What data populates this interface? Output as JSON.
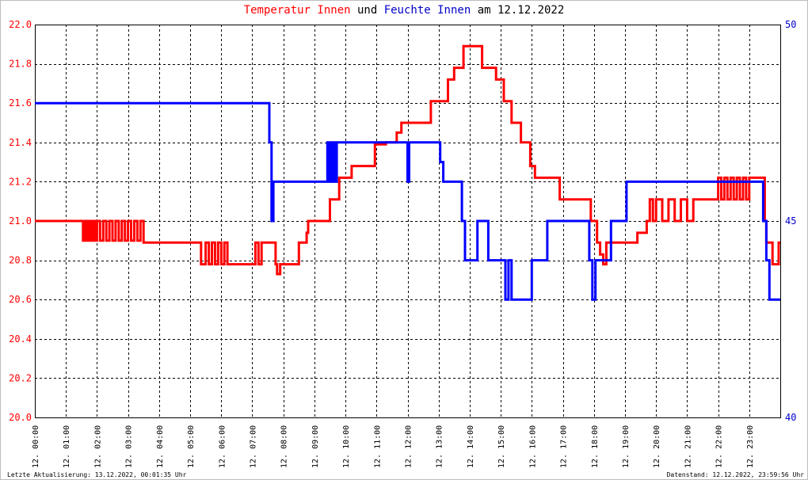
{
  "title": {
    "part1": "Temperatur Innen",
    "part2": " und ",
    "part3": "Feuchte Innen",
    "part4": " am 12.12.2022"
  },
  "footer": {
    "left": "Letzte Aktualisierung: 13.12.2022, 00:01:35 Uhr",
    "right": "Datenstand: 12.12.2022, 23:59:56 Uhr"
  },
  "colors": {
    "temperature": "#ff0000",
    "humidity": "#0000ff",
    "grid": "#000000",
    "title_temperature": "#ff0000",
    "title_humidity": "#0000c8"
  },
  "chart_data": {
    "type": "line",
    "grid": true,
    "x_range_hours": [
      0,
      24
    ],
    "x_ticks": [
      "12. 00:00",
      "12. 01:00",
      "12. 02:00",
      "12. 03:00",
      "12. 04:00",
      "12. 05:00",
      "12. 06:00",
      "12. 07:00",
      "12. 08:00",
      "12. 09:00",
      "12. 10:00",
      "12. 11:00",
      "12. 12:00",
      "12. 13:00",
      "12. 14:00",
      "12. 15:00",
      "12. 16:00",
      "12. 17:00",
      "12. 18:00",
      "12. 19:00",
      "12. 20:00",
      "12. 21:00",
      "12. 22:00",
      "12. 23:00"
    ],
    "y_left": {
      "min": 20.0,
      "max": 22.0,
      "ticks": [
        "20.0",
        "20.2",
        "20.4",
        "20.6",
        "20.8",
        "21.0",
        "21.2",
        "21.4",
        "21.6",
        "21.8",
        "22.0"
      ]
    },
    "y_right": {
      "min": 40,
      "max": 50,
      "ticks": [
        "40",
        "45",
        "50"
      ]
    },
    "series": [
      {
        "name": "Temperatur Innen",
        "axis": "left",
        "color": "#ff0000",
        "x": [
          0,
          1.55,
          1.6,
          1.65,
          1.7,
          1.75,
          1.8,
          1.85,
          1.9,
          1.95,
          2.0,
          2.1,
          2.2,
          2.3,
          2.4,
          2.5,
          2.6,
          2.7,
          2.8,
          2.9,
          3.0,
          3.1,
          3.2,
          3.3,
          3.4,
          3.5,
          5.3,
          5.35,
          5.5,
          5.6,
          5.7,
          5.8,
          5.9,
          6.0,
          6.1,
          6.2,
          6.3,
          7.1,
          7.2,
          7.3,
          7.4,
          7.75,
          7.8,
          7.9,
          7.95,
          8.5,
          8.6,
          8.75,
          8.8,
          9.1,
          9.5,
          9.8,
          10.2,
          10.8,
          10.95,
          11.3,
          11.65,
          11.8,
          12.6,
          12.75,
          12.9,
          13.3,
          13.5,
          13.8,
          14.05,
          14.4,
          14.55,
          14.85,
          15.1,
          15.35,
          15.65,
          15.95,
          16.1,
          16.9,
          17.05,
          17.9,
          17.95,
          18.1,
          18.2,
          18.3,
          18.4,
          19.0,
          19.4,
          19.7,
          19.8,
          19.9,
          20.0,
          20.2,
          20.4,
          20.6,
          20.8,
          21.0,
          21.2,
          21.95,
          22.0,
          22.1,
          22.2,
          22.3,
          22.4,
          22.5,
          22.6,
          22.7,
          22.8,
          22.9,
          23.0,
          23.1,
          23.35,
          23.5,
          23.55,
          23.75,
          23.95,
          24.0
        ],
        "y": [
          21.0,
          20.9,
          21.0,
          20.9,
          21.0,
          20.9,
          21.0,
          20.9,
          21.0,
          20.9,
          21.0,
          20.9,
          21.0,
          20.9,
          21.0,
          20.9,
          21.0,
          20.9,
          21.0,
          20.9,
          21.0,
          20.9,
          21.0,
          20.9,
          21.0,
          20.89,
          20.89,
          20.78,
          20.89,
          20.78,
          20.89,
          20.78,
          20.89,
          20.78,
          20.89,
          20.78,
          20.78,
          20.89,
          20.78,
          20.89,
          20.89,
          20.78,
          20.73,
          20.78,
          20.78,
          20.89,
          20.89,
          20.94,
          21.0,
          21.0,
          21.11,
          21.22,
          21.28,
          21.28,
          21.39,
          21.4,
          21.45,
          21.5,
          21.5,
          21.61,
          21.61,
          21.72,
          21.78,
          21.89,
          21.89,
          21.78,
          21.78,
          21.72,
          21.61,
          21.5,
          21.4,
          21.28,
          21.22,
          21.11,
          21.11,
          21.0,
          21.0,
          20.89,
          20.83,
          20.78,
          20.89,
          20.89,
          20.94,
          21.0,
          21.11,
          21.0,
          21.11,
          21.0,
          21.11,
          21.0,
          21.11,
          21.0,
          21.11,
          21.11,
          21.22,
          21.11,
          21.22,
          21.11,
          21.22,
          21.11,
          21.22,
          21.11,
          21.22,
          21.11,
          21.22,
          21.22,
          21.22,
          21.0,
          20.89,
          20.78,
          20.89,
          20.89
        ]
      },
      {
        "name": "Feuchte Innen",
        "axis": "right",
        "color": "#0000ff",
        "x": [
          0,
          7.5,
          7.55,
          7.62,
          7.68,
          7.72,
          9.4,
          9.42,
          9.47,
          9.52,
          9.57,
          9.62,
          9.67,
          9.72,
          11.95,
          12.0,
          12.05,
          12.85,
          13.05,
          13.15,
          13.3,
          13.75,
          13.85,
          14.15,
          14.25,
          14.6,
          14.7,
          14.95,
          15.15,
          15.25,
          15.35,
          15.45,
          15.55,
          15.7,
          16.0,
          16.15,
          16.5,
          16.85,
          17.1,
          17.4,
          17.6,
          17.85,
          17.95,
          18.05,
          18.1,
          18.15,
          18.3,
          18.55,
          18.7,
          18.9,
          19.05,
          19.25,
          19.45,
          19.6,
          21.5,
          22.0,
          22.5,
          23.0,
          23.3,
          23.45,
          23.55,
          23.65,
          23.75,
          24.0
        ],
        "y": [
          48.0,
          48.0,
          47.0,
          45.0,
          46.0,
          46.0,
          46.0,
          47.0,
          46.0,
          47.0,
          46.0,
          47.0,
          46.0,
          47.0,
          47.0,
          46.0,
          47.0,
          47.0,
          46.5,
          46.0,
          46.0,
          45.0,
          44.0,
          44.0,
          45.0,
          44.0,
          44.0,
          44.0,
          43.0,
          44.0,
          43.0,
          43.0,
          43.0,
          43.0,
          44.0,
          44.0,
          45.0,
          45.0,
          45.0,
          45.0,
          45.0,
          44.0,
          43.0,
          44.0,
          44.0,
          44.0,
          44.0,
          45.0,
          45.0,
          45.0,
          46.0,
          46.0,
          46.0,
          46.0,
          46.0,
          46.0,
          46.0,
          46.0,
          46.0,
          45.0,
          44.0,
          43.0,
          43.0,
          43.0
        ]
      }
    ]
  }
}
